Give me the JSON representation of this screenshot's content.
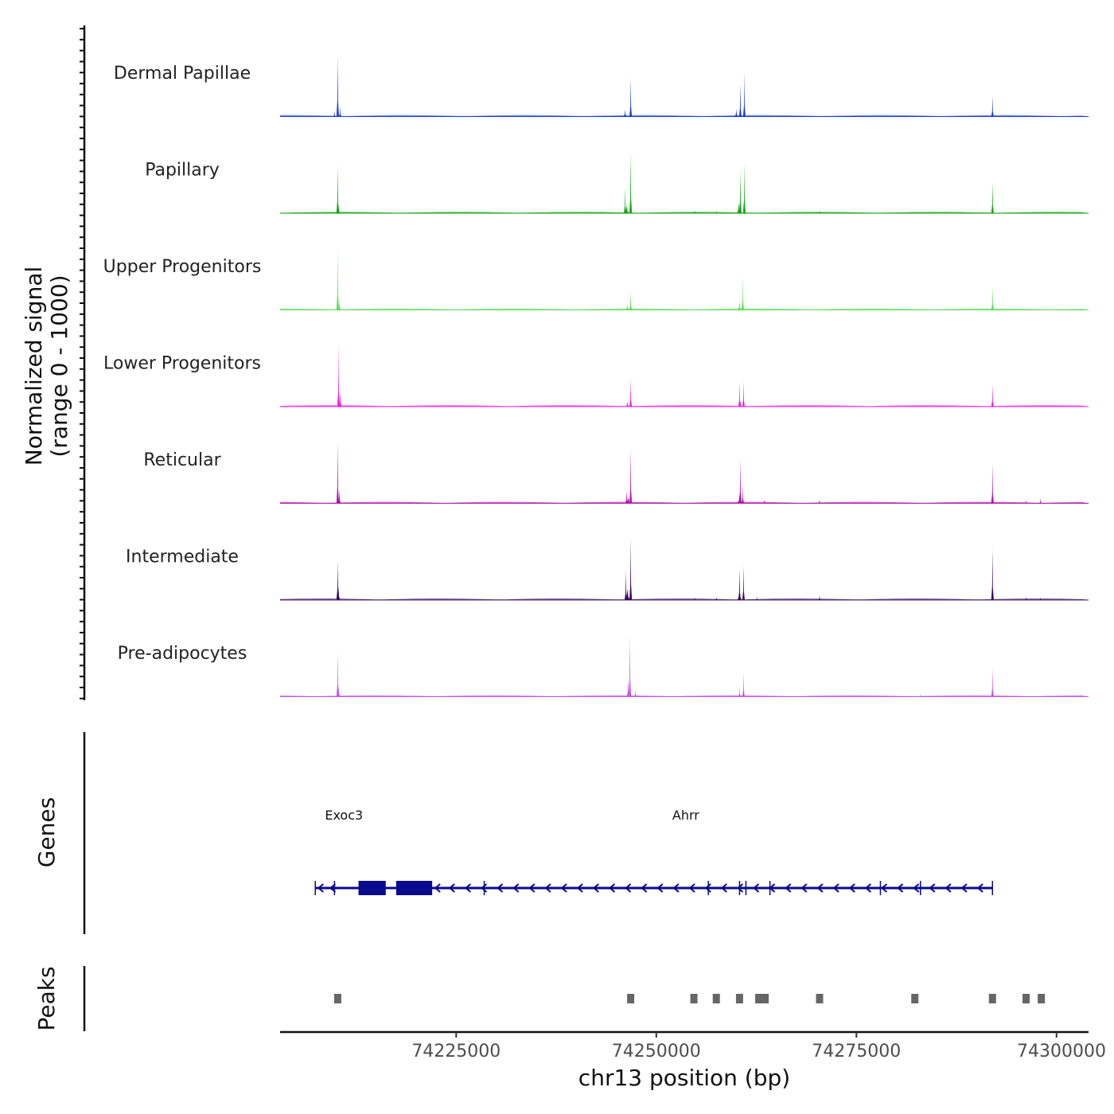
{
  "chart_data": {
    "type": "area",
    "title": "",
    "chromosome": "chr13",
    "xlabel": "chr13 position (bp)",
    "ylabel_line1": "Normalized signal",
    "ylabel_line2": "(range 0 - 1000)",
    "xlim": [
      74203000,
      74304000
    ],
    "ylim": [
      0,
      1000
    ],
    "x_ticks": [
      74225000,
      74250000,
      74275000,
      74300000
    ],
    "x_tick_labels": [
      "74225000",
      "74250000",
      "74275000",
      "74300000"
    ],
    "section_labels": {
      "genes": "Genes",
      "peaks": "Peaks"
    },
    "tracks": [
      {
        "name": "Dermal Papillae",
        "color": "#1f3fd0",
        "peaks": [
          {
            "pos": 74210200,
            "height": 1000,
            "width": 240
          },
          {
            "pos": 74210500,
            "height": 170,
            "width": 260
          },
          {
            "pos": 74209800,
            "height": 90,
            "width": 320
          },
          {
            "pos": 74246800,
            "height": 640,
            "width": 220
          },
          {
            "pos": 74246100,
            "height": 110,
            "width": 450
          },
          {
            "pos": 74261000,
            "height": 720,
            "width": 220
          },
          {
            "pos": 74260500,
            "height": 540,
            "width": 230
          },
          {
            "pos": 74260000,
            "height": 110,
            "width": 500
          },
          {
            "pos": 74292000,
            "height": 330,
            "width": 220
          }
        ]
      },
      {
        "name": "Papillary",
        "color": "#11a411",
        "peaks": [
          {
            "pos": 74210200,
            "height": 780,
            "width": 240
          },
          {
            "pos": 74210300,
            "height": 140,
            "width": 420
          },
          {
            "pos": 74246800,
            "height": 1000,
            "width": 220
          },
          {
            "pos": 74246100,
            "height": 420,
            "width": 200
          },
          {
            "pos": 74246300,
            "height": 130,
            "width": 700
          },
          {
            "pos": 74260500,
            "height": 700,
            "width": 230
          },
          {
            "pos": 74261000,
            "height": 820,
            "width": 220
          },
          {
            "pos": 74260300,
            "height": 160,
            "width": 500
          },
          {
            "pos": 74254800,
            "height": 50,
            "width": 200
          },
          {
            "pos": 74257500,
            "height": 40,
            "width": 200
          },
          {
            "pos": 74270400,
            "height": 40,
            "width": 300
          },
          {
            "pos": 74292000,
            "height": 500,
            "width": 220
          }
        ]
      },
      {
        "name": "Upper Progenitors",
        "color": "#5ddc5d",
        "peaks": [
          {
            "pos": 74210200,
            "height": 1000,
            "width": 260
          },
          {
            "pos": 74210400,
            "height": 130,
            "width": 420
          },
          {
            "pos": 74246800,
            "height": 300,
            "width": 320
          },
          {
            "pos": 74246400,
            "height": 90,
            "width": 500
          },
          {
            "pos": 74260800,
            "height": 560,
            "width": 240
          },
          {
            "pos": 74260400,
            "height": 150,
            "width": 450
          },
          {
            "pos": 74292000,
            "height": 380,
            "width": 220
          }
        ]
      },
      {
        "name": "Lower Progenitors",
        "color": "#f020e0",
        "peaks": [
          {
            "pos": 74210300,
            "height": 1000,
            "width": 260
          },
          {
            "pos": 74210500,
            "height": 220,
            "width": 450
          },
          {
            "pos": 74246800,
            "height": 450,
            "width": 300
          },
          {
            "pos": 74246400,
            "height": 80,
            "width": 500
          },
          {
            "pos": 74260400,
            "height": 400,
            "width": 220
          },
          {
            "pos": 74260900,
            "height": 420,
            "width": 200
          },
          {
            "pos": 74260500,
            "height": 100,
            "width": 450
          },
          {
            "pos": 74292000,
            "height": 360,
            "width": 220
          }
        ]
      },
      {
        "name": "Reticular",
        "color": "#b314a8",
        "peaks": [
          {
            "pos": 74210200,
            "height": 1000,
            "width": 240
          },
          {
            "pos": 74210400,
            "height": 200,
            "width": 420
          },
          {
            "pos": 74246800,
            "height": 890,
            "width": 220
          },
          {
            "pos": 74246300,
            "height": 200,
            "width": 400
          },
          {
            "pos": 74246500,
            "height": 100,
            "width": 800
          },
          {
            "pos": 74260500,
            "height": 720,
            "width": 240
          },
          {
            "pos": 74260800,
            "height": 300,
            "width": 300
          },
          {
            "pos": 74260400,
            "height": 140,
            "width": 700
          },
          {
            "pos": 74263500,
            "height": 60,
            "width": 200
          },
          {
            "pos": 74270400,
            "height": 60,
            "width": 300
          },
          {
            "pos": 74292000,
            "height": 640,
            "width": 220
          },
          {
            "pos": 74296200,
            "height": 60,
            "width": 200
          },
          {
            "pos": 74298000,
            "height": 80,
            "width": 220
          }
        ]
      },
      {
        "name": "Intermediate",
        "color": "#3a0a5c",
        "peaks": [
          {
            "pos": 74210200,
            "height": 640,
            "width": 240
          },
          {
            "pos": 74210300,
            "height": 220,
            "width": 420
          },
          {
            "pos": 74246800,
            "height": 1000,
            "width": 220
          },
          {
            "pos": 74246200,
            "height": 480,
            "width": 240
          },
          {
            "pos": 74246400,
            "height": 180,
            "width": 700
          },
          {
            "pos": 74260400,
            "height": 500,
            "width": 240
          },
          {
            "pos": 74260900,
            "height": 560,
            "width": 220
          },
          {
            "pos": 74260400,
            "height": 180,
            "width": 600
          },
          {
            "pos": 74254800,
            "height": 40,
            "width": 200
          },
          {
            "pos": 74257500,
            "height": 50,
            "width": 220
          },
          {
            "pos": 74262600,
            "height": 50,
            "width": 200
          },
          {
            "pos": 74270400,
            "height": 70,
            "width": 300
          },
          {
            "pos": 74292000,
            "height": 820,
            "width": 220
          },
          {
            "pos": 74296200,
            "height": 50,
            "width": 200
          },
          {
            "pos": 74298000,
            "height": 40,
            "width": 200
          }
        ]
      },
      {
        "name": "Pre-adipocytes",
        "color": "#c157ee",
        "peaks": [
          {
            "pos": 74210200,
            "height": 720,
            "width": 240
          },
          {
            "pos": 74210300,
            "height": 180,
            "width": 450
          },
          {
            "pos": 74246700,
            "height": 1000,
            "width": 220
          },
          {
            "pos": 74246500,
            "height": 300,
            "width": 400
          },
          {
            "pos": 74247400,
            "height": 120,
            "width": 260
          },
          {
            "pos": 74260400,
            "height": 140,
            "width": 260
          },
          {
            "pos": 74260900,
            "height": 380,
            "width": 200
          },
          {
            "pos": 74283000,
            "height": 40,
            "width": 300
          },
          {
            "pos": 74292000,
            "height": 470,
            "width": 220
          }
        ]
      }
    ],
    "genes": {
      "color": "#0a0a8c",
      "labels": [
        {
          "name": "Exoc3",
          "pos": 74208600
        },
        {
          "name": "Ahrr",
          "pos": 74252000
        }
      ],
      "line": [
        74207400,
        74292000
      ],
      "exons": [
        {
          "start": 74212800,
          "end": 74216200
        },
        {
          "start": 74217500,
          "end": 74222000
        }
      ],
      "arrows": [
        74208000,
        74209500,
        74222600,
        74224400,
        74226400,
        74228400,
        74230400,
        74232400,
        74234400,
        74236400,
        74238400,
        74240400,
        74242400,
        74244400,
        74246400,
        74248400,
        74250400,
        74252400,
        74254400,
        74256400,
        74258400,
        74260400,
        74262400,
        74264400,
        74266400,
        74268400,
        74270400,
        74272400,
        74274400,
        74276400,
        74278400,
        74280400,
        74282400,
        74284400,
        74286400,
        74288400,
        74290400
      ],
      "ticks": [
        74207400,
        74209800,
        74228500,
        74256500,
        74260400,
        74261200,
        74264200,
        74278000,
        74283000,
        74292000
      ]
    },
    "peak_regions": [
      74210200,
      74246800,
      74254700,
      74257500,
      74260400,
      74262800,
      74263600,
      74270400,
      74282300,
      74292000,
      74296200,
      74298100
    ]
  }
}
